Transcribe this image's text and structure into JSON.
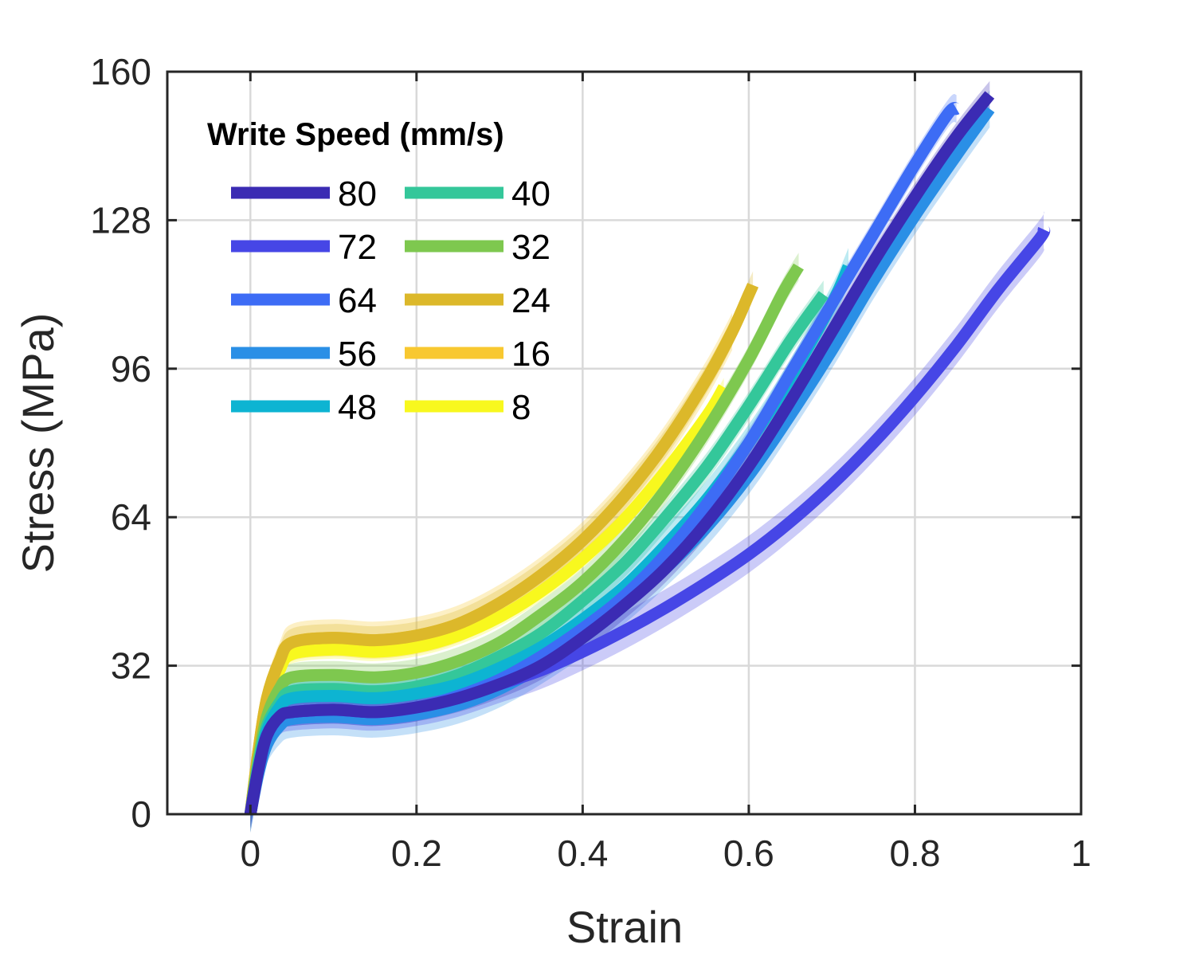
{
  "chart_data": {
    "type": "line",
    "xlabel": "Strain",
    "ylabel": "Stress (MPa)",
    "xlim": [
      -0.1,
      1
    ],
    "ylim": [
      0,
      160
    ],
    "xticks": [
      0,
      0.2,
      0.4,
      0.6,
      0.8,
      1
    ],
    "xtick_labels": [
      "0",
      "0.2",
      "0.4",
      "0.6",
      "0.8",
      "1"
    ],
    "yticks": [
      0,
      32,
      64,
      96,
      128,
      160
    ],
    "ytick_labels": [
      "0",
      "32",
      "64",
      "96",
      "128",
      "160"
    ],
    "grid": true,
    "legend": {
      "title": "Write Speed (mm/s)",
      "position": "top-left",
      "columns": 2
    },
    "series": [
      {
        "name": "80",
        "color": "#3b2bb3",
        "band": 3,
        "points": [
          [
            0,
            0
          ],
          [
            0.01,
            10
          ],
          [
            0.02,
            17
          ],
          [
            0.035,
            21
          ],
          [
            0.05,
            22
          ],
          [
            0.1,
            22.5
          ],
          [
            0.15,
            22
          ],
          [
            0.2,
            23
          ],
          [
            0.25,
            25
          ],
          [
            0.3,
            28
          ],
          [
            0.35,
            32
          ],
          [
            0.4,
            38
          ],
          [
            0.45,
            45
          ],
          [
            0.5,
            53
          ],
          [
            0.55,
            63
          ],
          [
            0.6,
            75
          ],
          [
            0.65,
            89
          ],
          [
            0.7,
            104
          ],
          [
            0.75,
            119
          ],
          [
            0.8,
            133
          ],
          [
            0.85,
            146
          ],
          [
            0.89,
            155
          ]
        ]
      },
      {
        "name": "72",
        "color": "#4646e6",
        "band": 4,
        "points": [
          [
            0,
            0
          ],
          [
            0.01,
            10
          ],
          [
            0.02,
            17
          ],
          [
            0.035,
            21
          ],
          [
            0.05,
            22
          ],
          [
            0.1,
            22.5
          ],
          [
            0.15,
            22
          ],
          [
            0.2,
            23
          ],
          [
            0.25,
            25
          ],
          [
            0.3,
            28
          ],
          [
            0.35,
            31
          ],
          [
            0.4,
            35
          ],
          [
            0.45,
            39.5
          ],
          [
            0.5,
            44.5
          ],
          [
            0.55,
            50
          ],
          [
            0.6,
            56
          ],
          [
            0.65,
            63
          ],
          [
            0.7,
            71
          ],
          [
            0.75,
            80
          ],
          [
            0.8,
            90
          ],
          [
            0.85,
            101
          ],
          [
            0.9,
            113
          ],
          [
            0.95,
            124
          ],
          [
            0.955,
            126
          ]
        ]
      },
      {
        "name": "64",
        "color": "#3d6cf5",
        "band": 3,
        "points": [
          [
            0,
            0
          ],
          [
            0.01,
            10
          ],
          [
            0.02,
            17
          ],
          [
            0.035,
            21
          ],
          [
            0.05,
            22
          ],
          [
            0.1,
            22.5
          ],
          [
            0.15,
            22
          ],
          [
            0.2,
            23
          ],
          [
            0.25,
            25.5
          ],
          [
            0.3,
            29
          ],
          [
            0.35,
            34
          ],
          [
            0.4,
            40
          ],
          [
            0.45,
            47
          ],
          [
            0.5,
            56
          ],
          [
            0.55,
            67
          ],
          [
            0.6,
            80
          ],
          [
            0.65,
            95
          ],
          [
            0.7,
            110
          ],
          [
            0.75,
            125
          ],
          [
            0.8,
            140
          ],
          [
            0.84,
            151
          ],
          [
            0.85,
            152
          ]
        ]
      },
      {
        "name": "56",
        "color": "#2a8fe6",
        "band": 4,
        "points": [
          [
            0,
            0
          ],
          [
            0.01,
            9
          ],
          [
            0.02,
            15
          ],
          [
            0.035,
            19
          ],
          [
            0.05,
            20.5
          ],
          [
            0.1,
            21
          ],
          [
            0.15,
            20.5
          ],
          [
            0.2,
            21.5
          ],
          [
            0.25,
            23.5
          ],
          [
            0.3,
            27
          ],
          [
            0.35,
            32
          ],
          [
            0.4,
            38
          ],
          [
            0.45,
            45
          ],
          [
            0.5,
            53
          ],
          [
            0.55,
            62
          ],
          [
            0.6,
            73
          ],
          [
            0.65,
            86
          ],
          [
            0.7,
            100
          ],
          [
            0.75,
            115
          ],
          [
            0.8,
            129
          ],
          [
            0.85,
            142
          ],
          [
            0.89,
            152
          ]
        ]
      },
      {
        "name": "48",
        "color": "#0db4d2",
        "band": 4,
        "points": [
          [
            0,
            0
          ],
          [
            0.01,
            10
          ],
          [
            0.02,
            18
          ],
          [
            0.035,
            23
          ],
          [
            0.05,
            25
          ],
          [
            0.1,
            25.5
          ],
          [
            0.15,
            25
          ],
          [
            0.2,
            26
          ],
          [
            0.25,
            28
          ],
          [
            0.3,
            31.5
          ],
          [
            0.35,
            36
          ],
          [
            0.4,
            42
          ],
          [
            0.45,
            49
          ],
          [
            0.5,
            58
          ],
          [
            0.55,
            68
          ],
          [
            0.6,
            80
          ],
          [
            0.65,
            94
          ],
          [
            0.7,
            110
          ],
          [
            0.72,
            118
          ]
        ]
      },
      {
        "name": "40",
        "color": "#34c79a",
        "band": 3,
        "points": [
          [
            0,
            0
          ],
          [
            0.01,
            11
          ],
          [
            0.02,
            19
          ],
          [
            0.035,
            24
          ],
          [
            0.05,
            26.5
          ],
          [
            0.1,
            27
          ],
          [
            0.15,
            26.5
          ],
          [
            0.2,
            27.5
          ],
          [
            0.25,
            30
          ],
          [
            0.3,
            34
          ],
          [
            0.35,
            39
          ],
          [
            0.4,
            46
          ],
          [
            0.45,
            54
          ],
          [
            0.5,
            64
          ],
          [
            0.55,
            75
          ],
          [
            0.6,
            88
          ],
          [
            0.65,
            102
          ],
          [
            0.69,
            112
          ]
        ]
      },
      {
        "name": "32",
        "color": "#7ec84f",
        "band": 3,
        "points": [
          [
            0,
            0
          ],
          [
            0.01,
            12
          ],
          [
            0.02,
            21
          ],
          [
            0.035,
            27
          ],
          [
            0.05,
            29.5
          ],
          [
            0.1,
            30
          ],
          [
            0.15,
            29.5
          ],
          [
            0.2,
            30.5
          ],
          [
            0.25,
            33
          ],
          [
            0.3,
            37
          ],
          [
            0.35,
            43
          ],
          [
            0.4,
            50
          ],
          [
            0.45,
            59
          ],
          [
            0.5,
            70
          ],
          [
            0.55,
            83
          ],
          [
            0.6,
            98
          ],
          [
            0.64,
            112
          ],
          [
            0.66,
            118
          ]
        ]
      },
      {
        "name": "24",
        "color": "#dcb82a",
        "band": 3,
        "points": [
          [
            0,
            0
          ],
          [
            0.01,
            14
          ],
          [
            0.02,
            25
          ],
          [
            0.035,
            33
          ],
          [
            0.05,
            37
          ],
          [
            0.1,
            38
          ],
          [
            0.15,
            37.5
          ],
          [
            0.2,
            38.5
          ],
          [
            0.25,
            41
          ],
          [
            0.3,
            45.5
          ],
          [
            0.35,
            51.5
          ],
          [
            0.4,
            59
          ],
          [
            0.45,
            68.5
          ],
          [
            0.5,
            80
          ],
          [
            0.55,
            94
          ],
          [
            0.58,
            104
          ],
          [
            0.6,
            112
          ],
          [
            0.605,
            114
          ]
        ]
      },
      {
        "name": "16",
        "color": "#f8c830",
        "band": 4,
        "points": [
          [
            0,
            0
          ],
          [
            0.01,
            14
          ],
          [
            0.02,
            25
          ],
          [
            0.035,
            33
          ],
          [
            0.05,
            37
          ],
          [
            0.1,
            38
          ],
          [
            0.15,
            37.5
          ],
          [
            0.2,
            38.5
          ],
          [
            0.25,
            41
          ],
          [
            0.3,
            45.5
          ],
          [
            0.35,
            51.5
          ],
          [
            0.4,
            59
          ],
          [
            0.45,
            68.5
          ],
          [
            0.5,
            80
          ],
          [
            0.55,
            94
          ],
          [
            0.58,
            104
          ]
        ]
      },
      {
        "name": "8",
        "color": "#f8f81e",
        "band": 2,
        "points": [
          [
            0,
            0
          ],
          [
            0.01,
            13
          ],
          [
            0.02,
            23
          ],
          [
            0.035,
            31
          ],
          [
            0.05,
            34.5
          ],
          [
            0.1,
            35.5
          ],
          [
            0.15,
            35
          ],
          [
            0.2,
            36
          ],
          [
            0.25,
            38.5
          ],
          [
            0.3,
            42.5
          ],
          [
            0.35,
            48
          ],
          [
            0.4,
            55
          ],
          [
            0.45,
            63.5
          ],
          [
            0.5,
            74
          ],
          [
            0.55,
            86
          ],
          [
            0.57,
            92
          ]
        ]
      }
    ]
  }
}
